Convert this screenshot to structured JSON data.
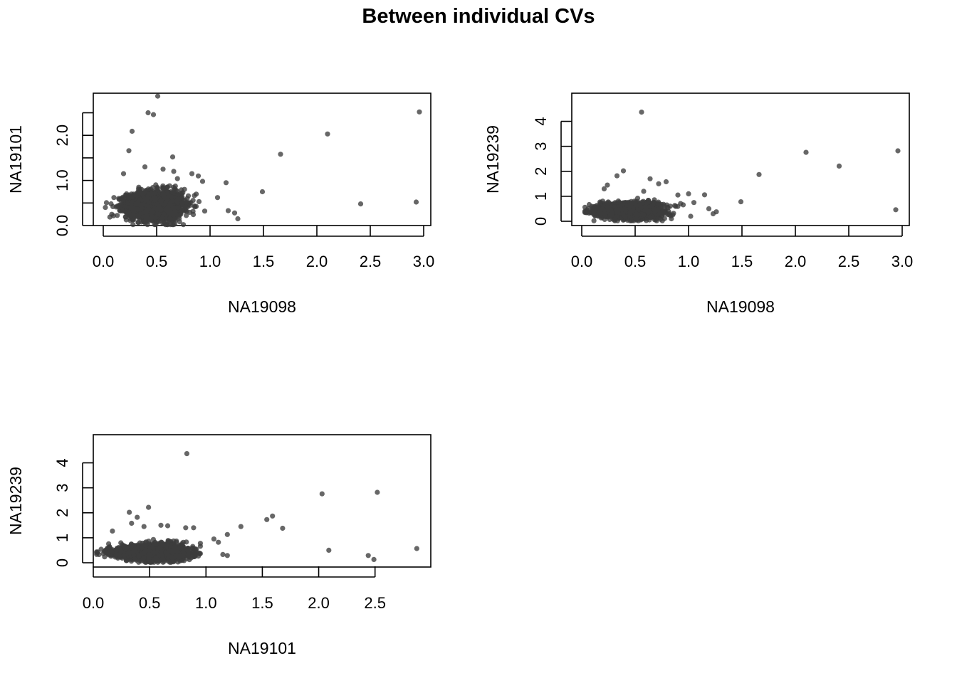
{
  "title": "Between individual CVs",
  "colors": {
    "point": "#3c3c3c",
    "frame": "#000000",
    "background": "#ffffff"
  },
  "chart_data": [
    {
      "type": "scatter",
      "xlabel": "NA19098",
      "ylabel": "NA19101",
      "xlim": [
        0.0,
        3.0
      ],
      "ylim": [
        0.0,
        2.95
      ],
      "xticks": [
        "0.0",
        "0.5",
        "1.0",
        "1.5",
        "2.0",
        "2.5",
        "3.0"
      ],
      "yticks": [
        "0.0",
        "1.0",
        "2.0"
      ],
      "yticks_unlabeled": [
        0.5,
        1.5,
        2.5
      ],
      "grid": false,
      "cluster": {
        "x_center": 0.48,
        "x_spread": 0.13,
        "y_center": 0.45,
        "y_spread": 0.15,
        "n": 2200
      },
      "points": [
        [
          0.51,
          2.87
        ],
        [
          0.42,
          2.5
        ],
        [
          0.47,
          2.46
        ],
        [
          0.27,
          2.09
        ],
        [
          0.24,
          1.66
        ],
        [
          0.65,
          1.52
        ],
        [
          0.56,
          1.25
        ],
        [
          0.66,
          1.2
        ],
        [
          0.83,
          1.15
        ],
        [
          0.89,
          1.1
        ],
        [
          0.93,
          0.98
        ],
        [
          1.15,
          0.95
        ],
        [
          1.07,
          0.62
        ],
        [
          1.17,
          0.33
        ],
        [
          1.23,
          0.28
        ],
        [
          1.26,
          0.15
        ],
        [
          0.95,
          0.32
        ],
        [
          1.49,
          0.75
        ],
        [
          1.66,
          1.58
        ],
        [
          2.1,
          2.03
        ],
        [
          2.96,
          2.52
        ],
        [
          2.41,
          0.48
        ],
        [
          2.93,
          0.52
        ],
        [
          0.02,
          0.4
        ],
        [
          0.1,
          0.62
        ],
        [
          0.08,
          0.25
        ],
        [
          0.19,
          1.15
        ],
        [
          0.39,
          1.3
        ]
      ]
    },
    {
      "type": "scatter",
      "xlabel": "NA19098",
      "ylabel": "NA19239",
      "xlim": [
        0.0,
        3.0
      ],
      "ylim": [
        0.0,
        4.5
      ],
      "xticks": [
        "0.0",
        "0.5",
        "1.0",
        "1.5",
        "2.0",
        "2.5",
        "3.0"
      ],
      "yticks": [
        "0",
        "1",
        "2",
        "3",
        "4"
      ],
      "yticks_unlabeled": [],
      "grid": false,
      "cluster": {
        "x_center": 0.45,
        "x_spread": 0.14,
        "y_center": 0.42,
        "y_spread": 0.14,
        "n": 2200
      },
      "points": [
        [
          0.56,
          4.37
        ],
        [
          0.39,
          2.02
        ],
        [
          0.33,
          1.82
        ],
        [
          0.24,
          1.45
        ],
        [
          0.64,
          1.7
        ],
        [
          0.79,
          1.58
        ],
        [
          0.72,
          1.5
        ],
        [
          0.58,
          1.2
        ],
        [
          0.9,
          1.05
        ],
        [
          1.0,
          1.1
        ],
        [
          1.15,
          1.06
        ],
        [
          1.05,
          0.75
        ],
        [
          1.19,
          0.5
        ],
        [
          1.23,
          0.3
        ],
        [
          1.26,
          0.38
        ],
        [
          1.02,
          0.2
        ],
        [
          1.49,
          0.78
        ],
        [
          1.66,
          1.87
        ],
        [
          2.1,
          2.76
        ],
        [
          2.41,
          2.21
        ],
        [
          2.96,
          2.82
        ],
        [
          2.94,
          0.46
        ],
        [
          0.05,
          0.35
        ],
        [
          0.07,
          0.67
        ],
        [
          0.21,
          1.3
        ]
      ]
    },
    {
      "type": "scatter",
      "xlabel": "NA19101",
      "ylabel": "NA19239",
      "xlim": [
        0.0,
        2.9
      ],
      "ylim": [
        0.0,
        4.5
      ],
      "xticks": [
        "0.0",
        "0.5",
        "1.0",
        "1.5",
        "2.0",
        "2.5"
      ],
      "yticks": [
        "0",
        "1",
        "2",
        "3",
        "4"
      ],
      "yticks_unlabeled": [],
      "grid": false,
      "cluster": {
        "x_center": 0.52,
        "x_spread": 0.16,
        "y_center": 0.42,
        "y_spread": 0.14,
        "n": 2200
      },
      "points": [
        [
          0.83,
          4.37
        ],
        [
          0.49,
          2.22
        ],
        [
          0.32,
          2.02
        ],
        [
          0.39,
          1.82
        ],
        [
          0.34,
          1.58
        ],
        [
          0.45,
          1.45
        ],
        [
          0.17,
          1.27
        ],
        [
          0.6,
          1.5
        ],
        [
          0.66,
          1.48
        ],
        [
          0.82,
          1.4
        ],
        [
          0.89,
          1.4
        ],
        [
          1.07,
          0.95
        ],
        [
          1.11,
          0.82
        ],
        [
          1.19,
          1.13
        ],
        [
          1.31,
          1.45
        ],
        [
          1.54,
          1.73
        ],
        [
          1.59,
          1.87
        ],
        [
          1.68,
          1.38
        ],
        [
          1.15,
          0.33
        ],
        [
          1.19,
          0.29
        ],
        [
          2.03,
          2.76
        ],
        [
          2.52,
          2.82
        ],
        [
          2.09,
          0.5
        ],
        [
          2.44,
          0.29
        ],
        [
          2.49,
          0.13
        ],
        [
          2.87,
          0.57
        ],
        [
          0.11,
          0.42
        ]
      ]
    }
  ]
}
